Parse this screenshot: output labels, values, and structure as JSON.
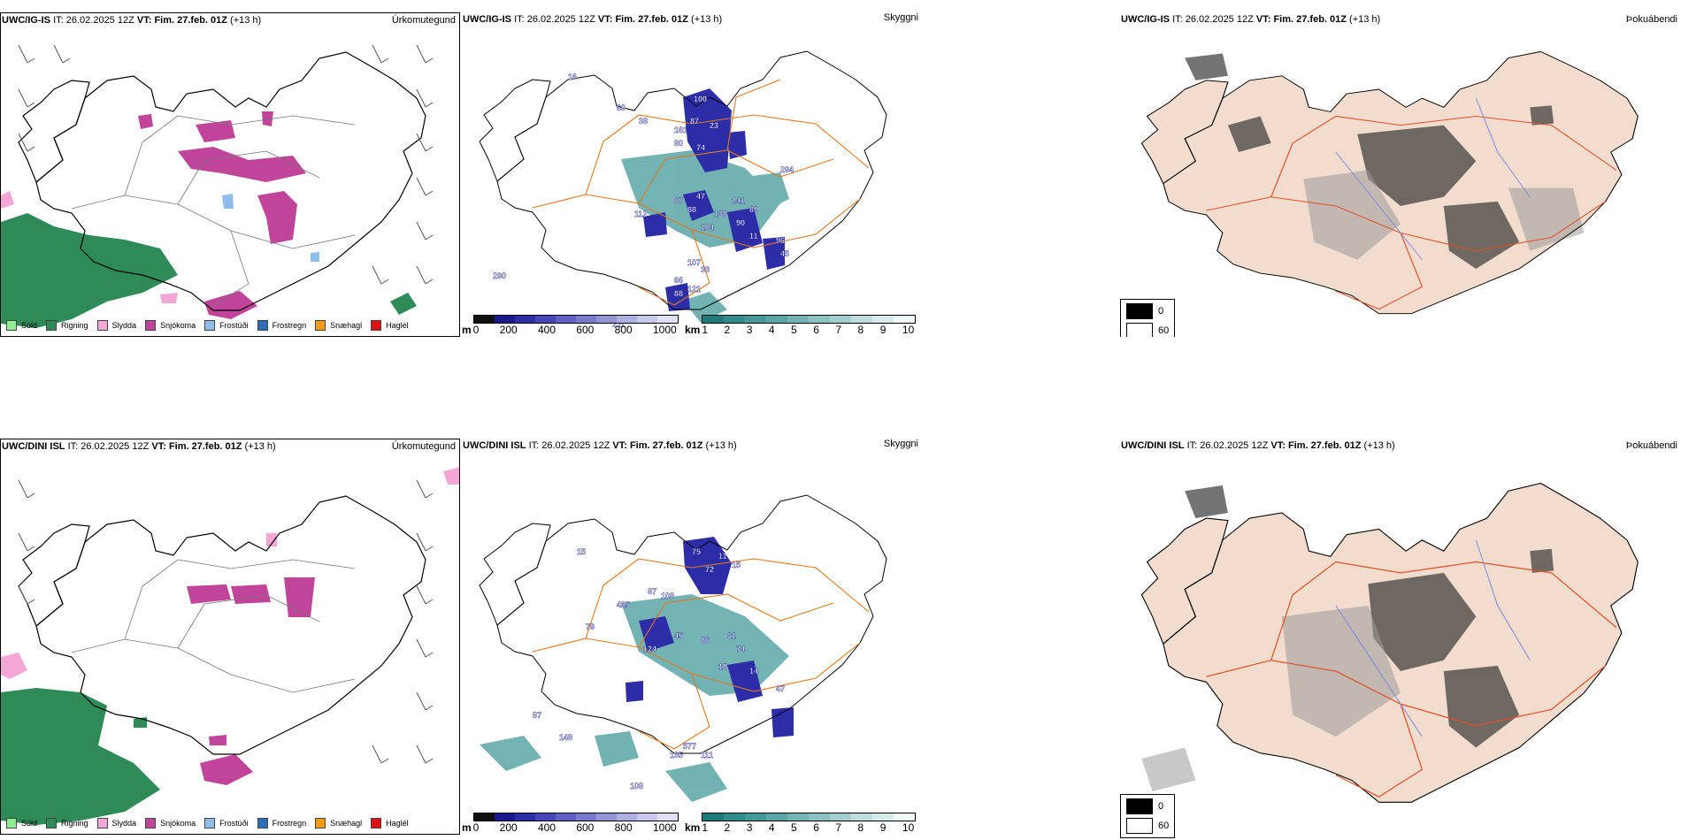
{
  "rows": [
    {
      "model": "UWC/IG-IS",
      "it_label": "IT:",
      "it": "26.02.2025 12Z",
      "vt_label": "VT:",
      "vt": "Fim. 27.feb. 01Z",
      "lead": "(+13 h)"
    },
    {
      "model": "UWC/DINI ISL",
      "it_label": "IT:",
      "it": "26.02.2025 12Z",
      "vt_label": "VT:",
      "vt": "Fim. 27.feb. 01Z",
      "lead": "(+13 h)"
    }
  ],
  "panel_titles": {
    "precip": "Úrkomutegund",
    "cloud": "Skyggni",
    "fog": "Þokuábendi"
  },
  "precip_legend": [
    {
      "label": "Súld",
      "color": "#90ee90"
    },
    {
      "label": "Rigning",
      "color": "#2e8b57"
    },
    {
      "label": "Slydda",
      "color": "#f4a6d7"
    },
    {
      "label": "Snjókoma",
      "color": "#c0459a"
    },
    {
      "label": "Frostúði",
      "color": "#8fbdea"
    },
    {
      "label": "Frostregn",
      "color": "#2f6db5"
    },
    {
      "label": "Snæhagl",
      "color": "#f39c12"
    },
    {
      "label": "Haglél",
      "color": "#e01010"
    }
  ],
  "cloud_base_scale": {
    "unit": "m",
    "ticks": [
      "0",
      "200",
      "400",
      "600",
      "800",
      "1000"
    ],
    "colors": [
      "#101010",
      "#1a1a8c",
      "#2d2da8",
      "#4646b8",
      "#6060c4",
      "#7a7acc",
      "#9595d6",
      "#b0b0e0",
      "#c8c8ea",
      "#e0e0f4"
    ]
  },
  "visibility_scale": {
    "unit": "km",
    "ticks": [
      "1",
      "2",
      "3",
      "4",
      "5",
      "6",
      "7",
      "8",
      "9",
      "10"
    ],
    "colors": [
      "#1f7a7a",
      "#2f8c8c",
      "#449999",
      "#5aa6a6",
      "#72b3b3",
      "#8cc2c2",
      "#a5cfcf",
      "#bfdddd",
      "#d8ebeb",
      "#f0f8f8"
    ]
  },
  "fog_scale": {
    "items": [
      {
        "label": "0",
        "color": "#000000"
      },
      {
        "label": "60",
        "color": "#ffffff"
      }
    ]
  },
  "cloud_labels_top": [
    "16",
    "69",
    "38",
    "100",
    "161",
    "87",
    "23",
    "74",
    "80",
    "294",
    "47",
    "67",
    "241",
    "89",
    "112",
    "88",
    "138",
    "104",
    "90",
    "11",
    "96",
    "45",
    "107",
    "33",
    "66",
    "121",
    "88",
    "211",
    "290"
  ],
  "cloud_labels_bottom": [
    "15",
    "75",
    "11",
    "72",
    "15",
    "87",
    "425",
    "108",
    "79",
    "45",
    "124",
    "86",
    "61",
    "74",
    "14",
    "47",
    "87",
    "148",
    "577",
    "135",
    "111",
    "108",
    "18"
  ]
}
